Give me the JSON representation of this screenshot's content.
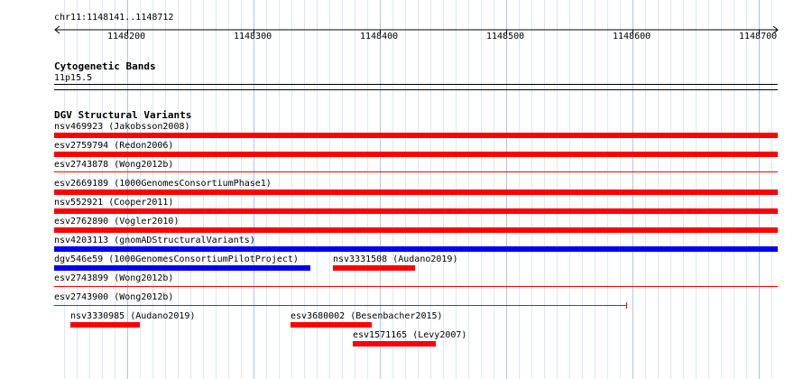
{
  "ruler": {
    "coordinates": "chr11:1148141..1148712",
    "ticks": [
      "1148200",
      "1148300",
      "1148400",
      "1148500",
      "1148600",
      "1148700"
    ]
  },
  "cytoband": {
    "title": "Cytogenetic Bands",
    "band": "11p15.5"
  },
  "dgv": {
    "title": "DGV Structural Variants",
    "variants": [
      {
        "label": "nsv469923 (Jakobsson2008)",
        "color": "#ff0000",
        "style": "thick"
      },
      {
        "label": "esv2759794 (Redon2006)",
        "color": "#ff0000",
        "style": "thick"
      },
      {
        "label": "esv2743878 (Wong2012b)",
        "color": "#ff0000",
        "style": "thin"
      },
      {
        "label": "esv2669189 (1000GenomesConsortiumPhase1)",
        "color": "#ff0000",
        "style": "thick"
      },
      {
        "label": "nsv552921 (Cooper2011)",
        "color": "#ff0000",
        "style": "thick"
      },
      {
        "label": "esv2762890 (Vogler2010)",
        "color": "#ff0000",
        "style": "thick"
      },
      {
        "label": "nsv4203113 (gnomADStructuralVariants)",
        "color": "#0000ee",
        "style": "thick"
      },
      {
        "label": "dgv546e59 (1000GenomesConsortiumPilotProject)",
        "color": "#0000ee",
        "style": "thick"
      },
      {
        "label": "nsv3331508 (Audano2019)",
        "color": "#ff0000",
        "style": "thick"
      },
      {
        "label": "esv2743899 (Wong2012b)",
        "color": "#ff0000",
        "style": "thin"
      },
      {
        "label": "esv2743900 (Wong2012b)",
        "color": "#ff0000",
        "style": "thin"
      },
      {
        "label": "nsv3330985 (Audano2019)",
        "color": "#ff0000",
        "style": "thick"
      },
      {
        "label": "esv3680002 (Besenbacher2015)",
        "color": "#ff0000",
        "style": "thick"
      },
      {
        "label": "esv1571165 (Levy2007)",
        "color": "#ff0000",
        "style": "thick"
      }
    ]
  }
}
